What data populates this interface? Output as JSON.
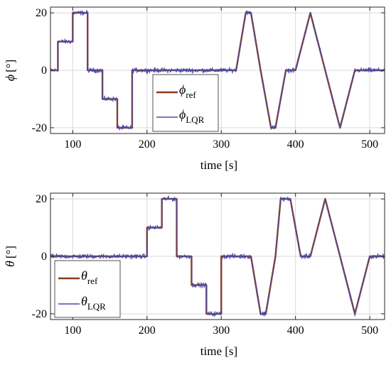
{
  "chart_data": [
    {
      "type": "line",
      "xlabel": "time [s]",
      "ylabel_symbol": "ϕ",
      "ylabel_unit": "[°]",
      "xlim": [
        70,
        520
      ],
      "ylim": [
        -22,
        22
      ],
      "xticks": [
        100,
        200,
        300,
        400,
        500
      ],
      "yticks": [
        -20,
        0,
        20
      ],
      "grid": true,
      "legend_placement": "bottom-center",
      "series": [
        {
          "name": "ϕ_ref",
          "legend_symbol": "ϕ",
          "legend_sub": "ref",
          "color": "#8B3A1E",
          "x": [
            70,
            80,
            80,
            90,
            90,
            100,
            100,
            120,
            120,
            140,
            140,
            160,
            160,
            180,
            180,
            320,
            333,
            340,
            353,
            367,
            373,
            387,
            400,
            410,
            420,
            440,
            460,
            470,
            480,
            520
          ],
          "y": [
            0,
            0,
            10,
            10,
            10,
            10,
            20,
            20,
            0,
            0,
            -10,
            -10,
            -20,
            -20,
            0,
            0,
            20,
            20,
            0,
            -20,
            -20,
            0,
            0,
            10,
            20,
            0,
            -20,
            -10,
            0,
            0
          ]
        },
        {
          "name": "ϕ_LQR",
          "legend_symbol": "ϕ",
          "legend_sub": "LQR",
          "color": "#4B4BA8",
          "noise": 0.8
        }
      ]
    },
    {
      "type": "line",
      "xlabel": "time [s]",
      "ylabel_symbol": "θ",
      "ylabel_unit": "[°]",
      "xlim": [
        70,
        520
      ],
      "ylim": [
        -22,
        22
      ],
      "xticks": [
        100,
        200,
        300,
        400,
        500
      ],
      "yticks": [
        -20,
        0,
        20
      ],
      "grid": true,
      "legend_placement": "bottom-left",
      "series": [
        {
          "name": "θ_ref",
          "legend_symbol": "θ",
          "legend_sub": "ref",
          "color": "#8B3A1E",
          "x": [
            70,
            200,
            200,
            220,
            220,
            240,
            240,
            260,
            260,
            280,
            280,
            300,
            300,
            340,
            353,
            360,
            373,
            380,
            393,
            407,
            420,
            430,
            440,
            460,
            480,
            490,
            500,
            520
          ],
          "y": [
            0,
            0,
            10,
            10,
            20,
            20,
            0,
            0,
            -10,
            -10,
            -20,
            -20,
            0,
            0,
            -20,
            -20,
            0,
            20,
            20,
            0,
            0,
            10,
            20,
            0,
            -20,
            -10,
            0,
            0
          ]
        },
        {
          "name": "θ_LQR",
          "legend_symbol": "θ",
          "legend_sub": "LQR",
          "color": "#4B4BA8",
          "noise": 0.8
        }
      ]
    }
  ]
}
